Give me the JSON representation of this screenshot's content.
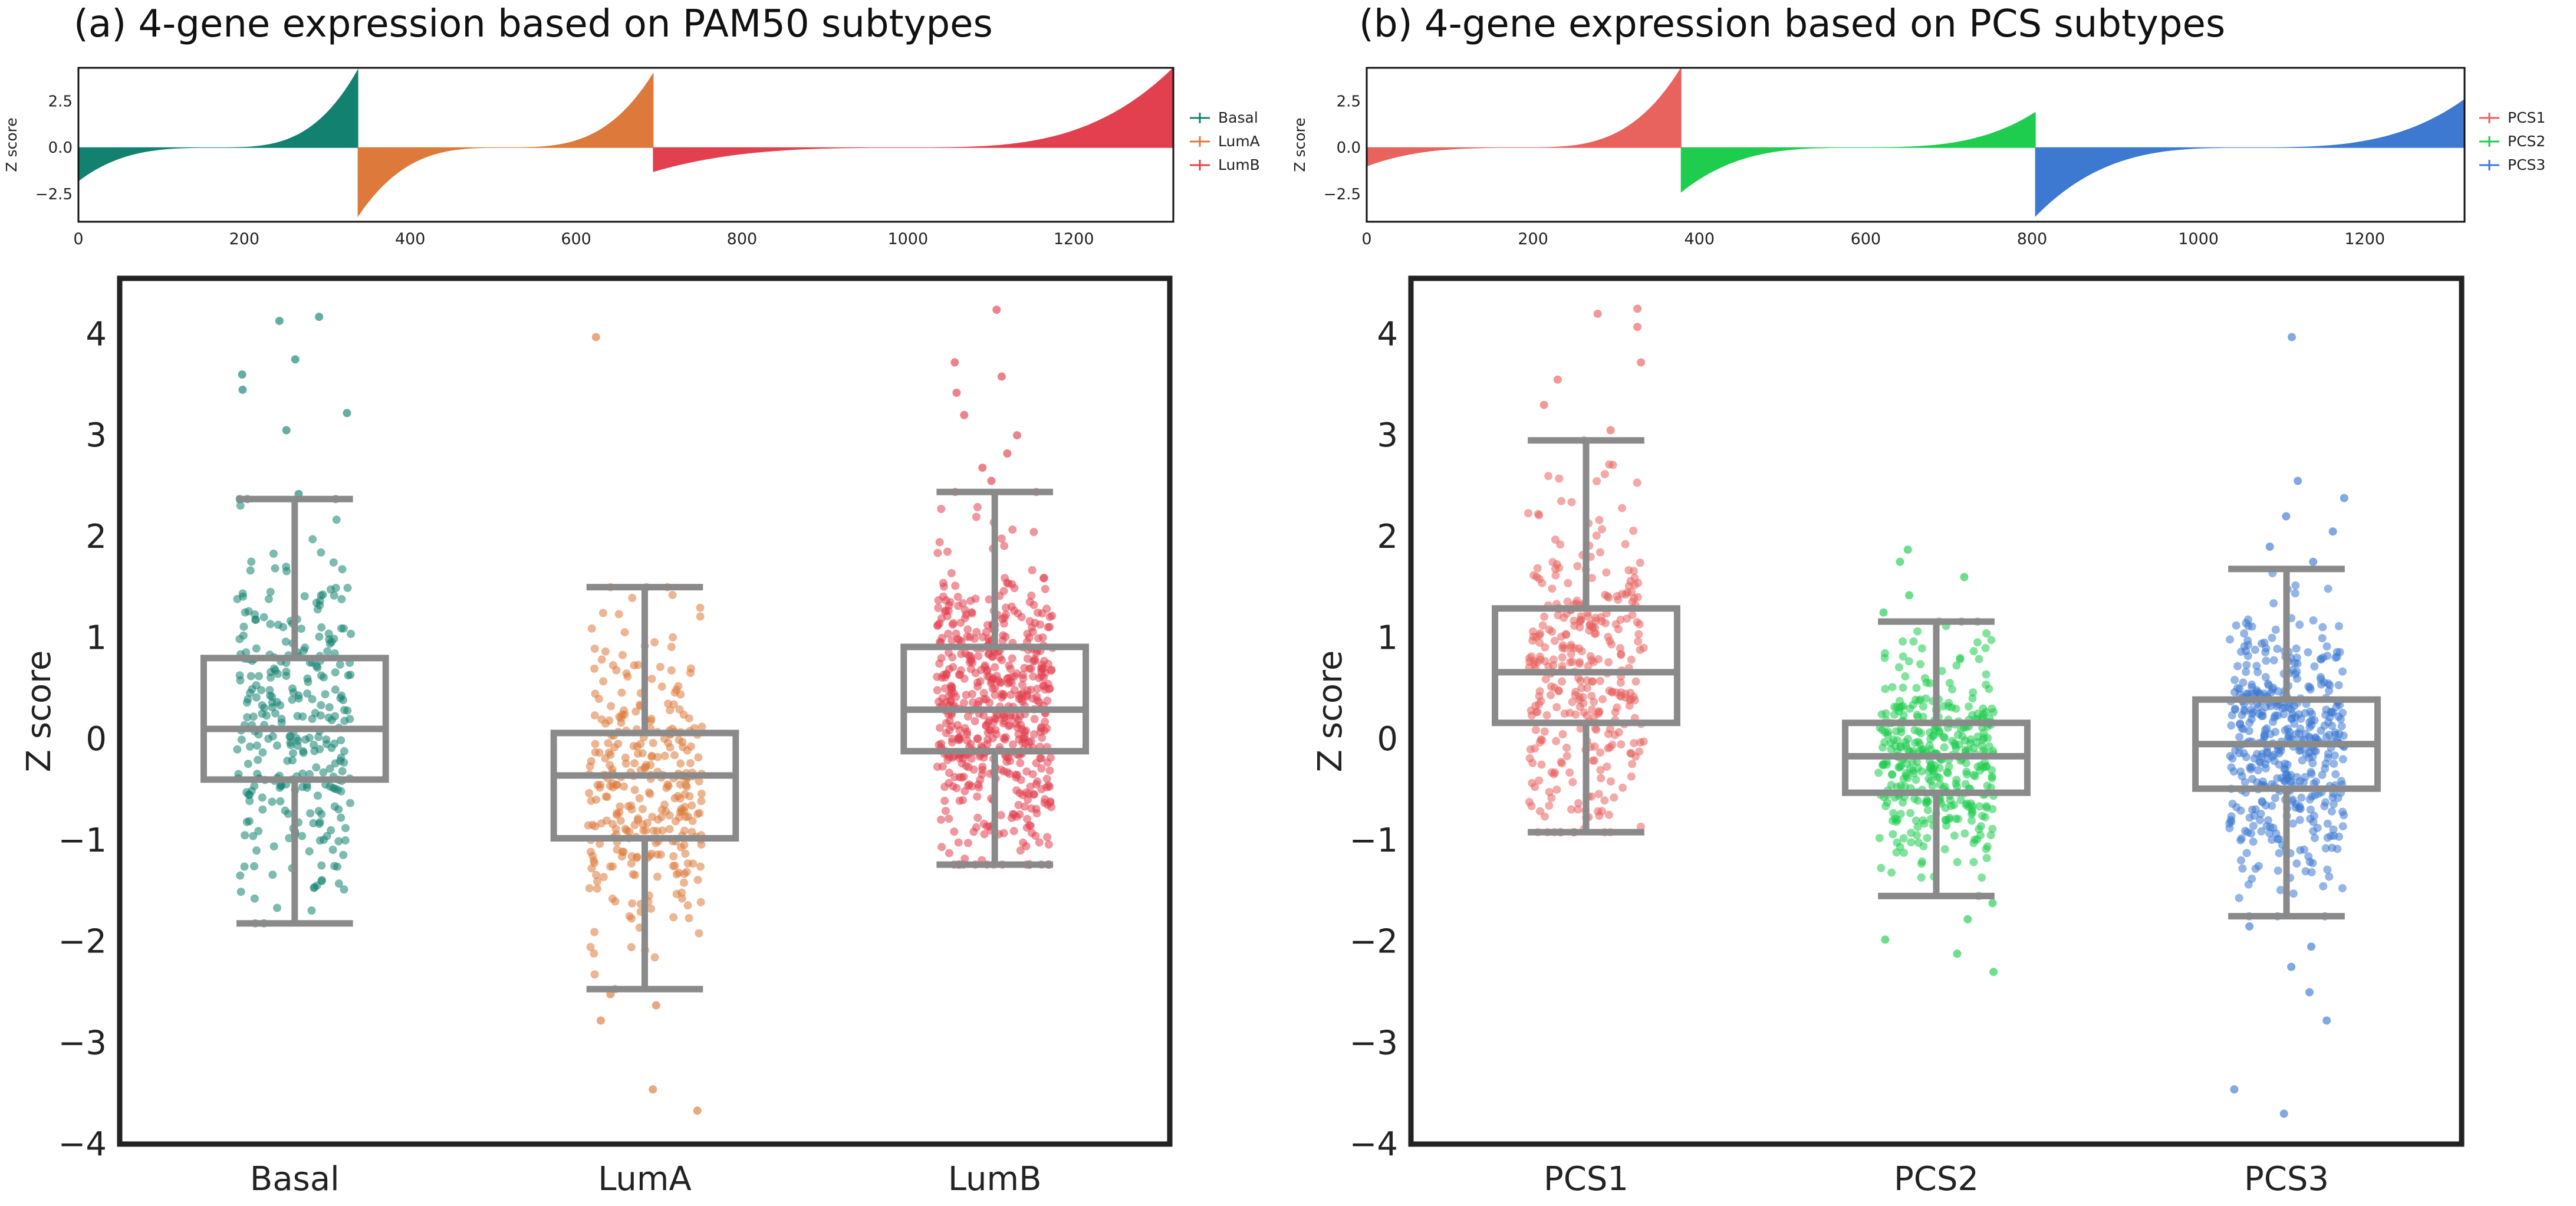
{
  "panels": [
    {
      "title": "(a) 4-gene expression based on PAM50 subtypes"
    },
    {
      "title": "(b) 4-gene expression based on PCS subtypes"
    }
  ],
  "chart_data": [
    {
      "type": "bar",
      "subtype": "sorted-waterfall",
      "panel": "a-top",
      "ylabel": "Z score",
      "xlim": [
        0,
        1320
      ],
      "ylim": [
        -4.0,
        4.3
      ],
      "xticks": [
        0,
        200,
        400,
        600,
        800,
        1000,
        1200
      ],
      "yticks": [
        -2.5,
        0.0,
        2.5
      ],
      "ytick_labels": [
        "−2.5",
        "0.0",
        "2.5"
      ],
      "legend": "right",
      "series": [
        {
          "name": "Basal",
          "color": "#138170",
          "x_range": [
            0,
            337
          ],
          "y_min": -1.8,
          "y_max": 4.2
        },
        {
          "name": "LumA",
          "color": "#DD7A3B",
          "x_range": [
            337,
            693
          ],
          "y_min": -3.7,
          "y_max": 4.0
        },
        {
          "name": "LumB",
          "color": "#E2404F",
          "x_range": [
            693,
            1320
          ],
          "y_min": -1.3,
          "y_max": 4.3
        }
      ]
    },
    {
      "type": "bar",
      "subtype": "sorted-waterfall",
      "panel": "b-top",
      "ylabel": "Z score",
      "xlim": [
        0,
        1320
      ],
      "ylim": [
        -4.0,
        4.3
      ],
      "xticks": [
        0,
        200,
        400,
        600,
        800,
        1000,
        1200
      ],
      "yticks": [
        -2.5,
        0.0,
        2.5
      ],
      "ytick_labels": [
        "−2.5",
        "0.0",
        "2.5"
      ],
      "legend": "right",
      "series": [
        {
          "name": "PCS1",
          "color": "#E8625E",
          "x_range": [
            0,
            378
          ],
          "y_min": -1.0,
          "y_max": 4.3
        },
        {
          "name": "PCS2",
          "color": "#1ECC4E",
          "x_range": [
            378,
            804
          ],
          "y_min": -2.4,
          "y_max": 1.9
        },
        {
          "name": "PCS3",
          "color": "#3D79D1",
          "x_range": [
            804,
            1320
          ],
          "y_min": -3.7,
          "y_max": 2.6
        }
      ]
    },
    {
      "type": "box",
      "panel": "a-bottom",
      "ylabel": "Z score",
      "ylim": [
        -4.0,
        4.55
      ],
      "yticks": [
        -4,
        -3,
        -2,
        -1,
        0,
        1,
        2,
        3,
        4
      ],
      "ytick_labels": [
        "−4",
        "−3",
        "−2",
        "−1",
        "0",
        "1",
        "2",
        "3",
        "4"
      ],
      "categories": [
        "Basal",
        "LumA",
        "LumB"
      ],
      "colors": [
        "#138170",
        "#DD7A3B",
        "#E2404F"
      ],
      "boxes": [
        {
          "whislo": -1.82,
          "q1": -0.4,
          "med": 0.1,
          "q3": 0.8,
          "whishi": 2.37,
          "fliers": [
            2.42,
            3.05,
            3.22,
            3.45,
            3.6,
            3.75,
            4.13,
            4.17
          ]
        },
        {
          "whislo": -2.47,
          "q1": -0.98,
          "med": -0.36,
          "q3": 0.06,
          "whishi": 1.5,
          "fliers": [
            -2.52,
            -2.63,
            -2.78,
            -3.46,
            -3.67,
            3.97
          ]
        },
        {
          "whislo": -1.24,
          "q1": -0.12,
          "med": 0.29,
          "q3": 0.91,
          "whishi": 2.44,
          "fliers": [
            2.55,
            2.68,
            2.82,
            3.0,
            3.2,
            3.42,
            3.58,
            3.72,
            4.24
          ]
        }
      ]
    },
    {
      "type": "box",
      "panel": "b-bottom",
      "ylabel": "Z score",
      "ylim": [
        -4.0,
        4.55
      ],
      "yticks": [
        -4,
        -3,
        -2,
        -1,
        0,
        1,
        2,
        3,
        4
      ],
      "ytick_labels": [
        "−4",
        "−3",
        "−2",
        "−1",
        "0",
        "1",
        "2",
        "3",
        "4"
      ],
      "categories": [
        "PCS1",
        "PCS2",
        "PCS3"
      ],
      "colors": [
        "#E8625E",
        "#1ECC4E",
        "#3D79D1"
      ],
      "boxes": [
        {
          "whislo": -0.92,
          "q1": 0.16,
          "med": 0.66,
          "q3": 1.29,
          "whishi": 2.95,
          "fliers": [
            3.05,
            3.3,
            3.55,
            3.72,
            4.07,
            4.2,
            4.25
          ]
        },
        {
          "whislo": -1.55,
          "q1": -0.53,
          "med": -0.17,
          "q3": 0.16,
          "whishi": 1.16,
          "fliers": [
            1.25,
            1.42,
            1.6,
            1.75,
            1.87,
            -1.62,
            -1.78,
            -1.98,
            -2.12,
            -2.3
          ]
        },
        {
          "whislo": -1.75,
          "q1": -0.49,
          "med": -0.05,
          "q3": 0.39,
          "whishi": 1.68,
          "fliers": [
            1.75,
            1.9,
            2.05,
            2.2,
            2.38,
            2.55,
            -1.85,
            -2.05,
            -2.25,
            -2.5,
            -2.78,
            -3.46,
            -3.7,
            3.97
          ]
        }
      ]
    }
  ]
}
